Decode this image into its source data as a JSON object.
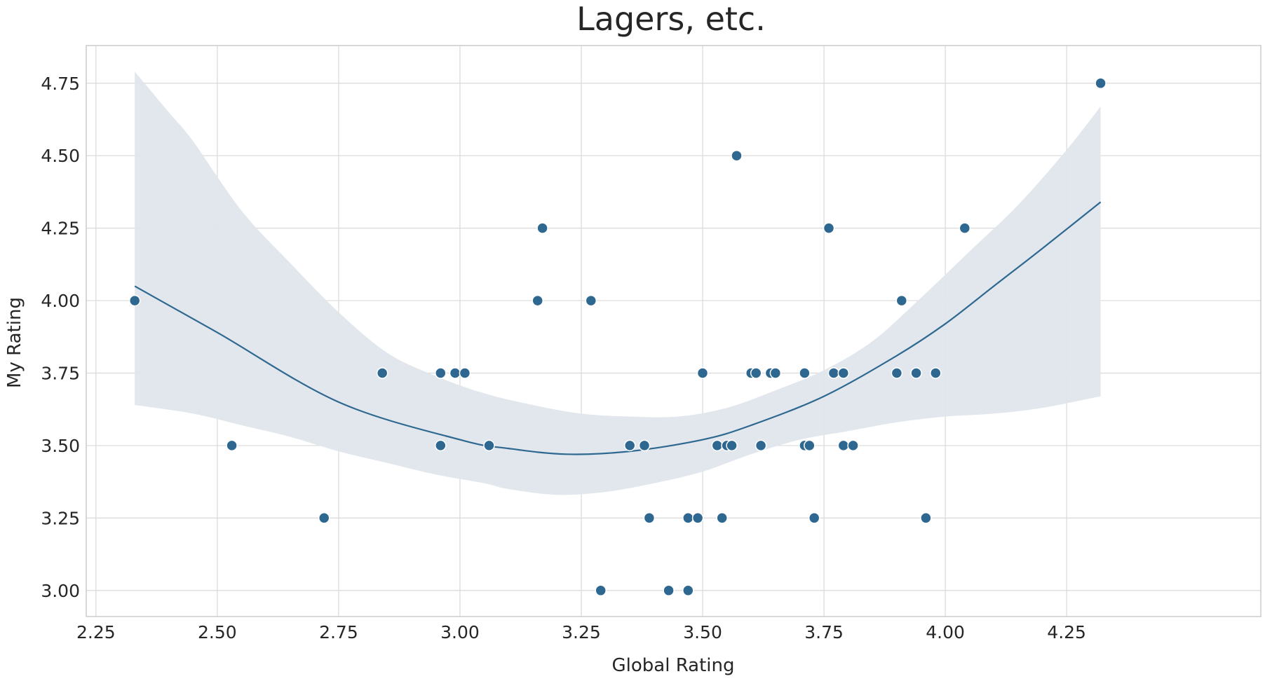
{
  "chart_data": {
    "type": "scatter",
    "title": "Lagers, etc.",
    "xlabel": "Global Rating",
    "ylabel": "My Rating",
    "xlim": [
      2.23,
      4.65
    ],
    "ylim": [
      2.91,
      4.88
    ],
    "xticks": [
      "2.25",
      "2.50",
      "2.75",
      "3.00",
      "3.25",
      "3.50",
      "3.75",
      "4.00",
      "4.25"
    ],
    "yticks": [
      "3.00",
      "3.25",
      "3.50",
      "3.75",
      "4.00",
      "4.25",
      "4.50",
      "4.75"
    ],
    "grid": true,
    "colors": {
      "point": "#2e6890",
      "line": "#2e6890",
      "band": "#dfe6ec"
    },
    "points": [
      [
        2.33,
        4.0
      ],
      [
        2.53,
        3.5
      ],
      [
        2.72,
        3.25
      ],
      [
        2.84,
        3.75
      ],
      [
        2.96,
        3.75
      ],
      [
        2.96,
        3.5
      ],
      [
        2.99,
        3.75
      ],
      [
        3.01,
        3.75
      ],
      [
        3.06,
        3.5
      ],
      [
        3.16,
        4.0
      ],
      [
        3.17,
        4.25
      ],
      [
        3.27,
        4.0
      ],
      [
        3.29,
        3.0
      ],
      [
        3.35,
        3.5
      ],
      [
        3.38,
        3.5
      ],
      [
        3.39,
        3.25
      ],
      [
        3.43,
        3.0
      ],
      [
        3.47,
        3.25
      ],
      [
        3.47,
        3.0
      ],
      [
        3.49,
        3.25
      ],
      [
        3.5,
        3.75
      ],
      [
        3.53,
        3.5
      ],
      [
        3.54,
        3.25
      ],
      [
        3.55,
        3.5
      ],
      [
        3.56,
        3.5
      ],
      [
        3.57,
        4.5
      ],
      [
        3.6,
        3.75
      ],
      [
        3.61,
        3.75
      ],
      [
        3.62,
        3.5
      ],
      [
        3.64,
        3.75
      ],
      [
        3.65,
        3.75
      ],
      [
        3.71,
        3.75
      ],
      [
        3.71,
        3.5
      ],
      [
        3.72,
        3.5
      ],
      [
        3.73,
        3.25
      ],
      [
        3.76,
        4.25
      ],
      [
        3.77,
        3.75
      ],
      [
        3.79,
        3.75
      ],
      [
        3.79,
        3.5
      ],
      [
        3.81,
        3.5
      ],
      [
        3.9,
        3.75
      ],
      [
        3.91,
        4.0
      ],
      [
        3.94,
        3.75
      ],
      [
        3.96,
        3.25
      ],
      [
        3.98,
        3.75
      ],
      [
        4.04,
        4.25
      ],
      [
        4.32,
        4.75
      ]
    ],
    "fit_line": [
      [
        2.33,
        4.05
      ],
      [
        2.5,
        3.89
      ],
      [
        2.75,
        3.65
      ],
      [
        3.0,
        3.52
      ],
      [
        3.1,
        3.49
      ],
      [
        3.22,
        3.47
      ],
      [
        3.35,
        3.48
      ],
      [
        3.5,
        3.52
      ],
      [
        3.6,
        3.57
      ],
      [
        3.75,
        3.67
      ],
      [
        3.9,
        3.81
      ],
      [
        4.0,
        3.92
      ],
      [
        4.1,
        4.05
      ],
      [
        4.2,
        4.18
      ],
      [
        4.32,
        4.34
      ]
    ],
    "ci_upper": [
      [
        2.33,
        4.79
      ],
      [
        2.4,
        4.65
      ],
      [
        2.45,
        4.55
      ],
      [
        2.55,
        4.31
      ],
      [
        2.65,
        4.13
      ],
      [
        2.75,
        3.96
      ],
      [
        2.85,
        3.82
      ],
      [
        2.95,
        3.74
      ],
      [
        3.05,
        3.68
      ],
      [
        3.15,
        3.64
      ],
      [
        3.25,
        3.61
      ],
      [
        3.35,
        3.6
      ],
      [
        3.45,
        3.6
      ],
      [
        3.55,
        3.63
      ],
      [
        3.65,
        3.69
      ],
      [
        3.75,
        3.76
      ],
      [
        3.85,
        3.86
      ],
      [
        3.95,
        4.01
      ],
      [
        4.05,
        4.17
      ],
      [
        4.15,
        4.33
      ],
      [
        4.25,
        4.52
      ],
      [
        4.32,
        4.67
      ]
    ],
    "ci_lower": [
      [
        2.33,
        3.64
      ],
      [
        2.45,
        3.61
      ],
      [
        2.55,
        3.57
      ],
      [
        2.65,
        3.53
      ],
      [
        2.75,
        3.48
      ],
      [
        2.85,
        3.44
      ],
      [
        2.95,
        3.4
      ],
      [
        3.05,
        3.37
      ],
      [
        3.1,
        3.35
      ],
      [
        3.2,
        3.33
      ],
      [
        3.3,
        3.34
      ],
      [
        3.4,
        3.37
      ],
      [
        3.5,
        3.41
      ],
      [
        3.6,
        3.47
      ],
      [
        3.7,
        3.52
      ],
      [
        3.8,
        3.55
      ],
      [
        3.9,
        3.58
      ],
      [
        4.0,
        3.6
      ],
      [
        4.1,
        3.61
      ],
      [
        4.2,
        3.63
      ],
      [
        4.32,
        3.67
      ]
    ]
  }
}
